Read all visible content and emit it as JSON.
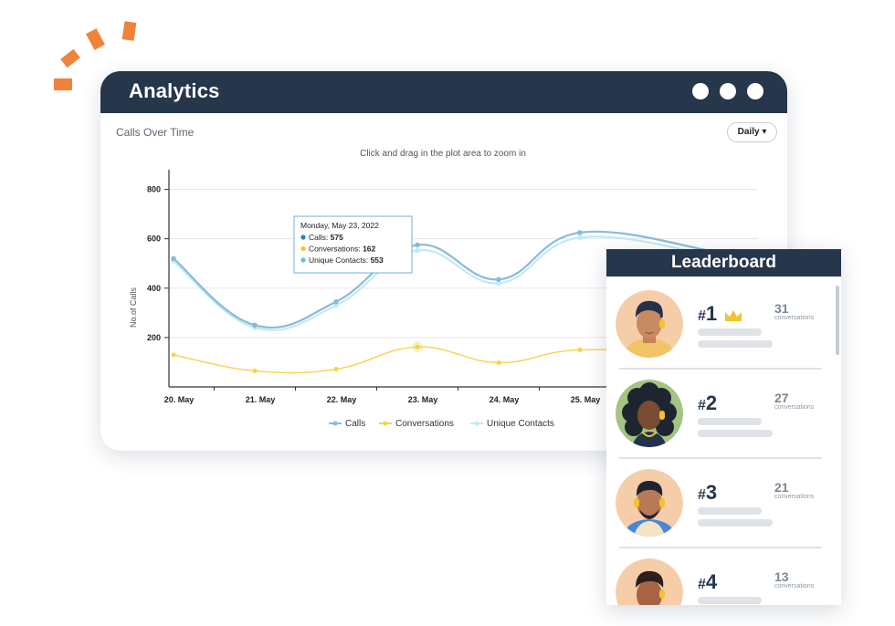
{
  "window": {
    "title": "Analytics",
    "chart_title": "Calls Over Time",
    "interval_select": "Daily ▾",
    "zoom_hint": "Click and drag in the plot area to zoom in"
  },
  "chart_data": {
    "type": "line",
    "title": "Calls Over Time",
    "subtitle": "Click and drag in the plot area to zoom in",
    "xlabel": "",
    "ylabel": "No.of Calls",
    "categories": [
      "20. May",
      "21. May",
      "22. May",
      "23. May",
      "24. May",
      "25. May"
    ],
    "yticks": [
      200,
      400,
      600,
      800
    ],
    "ylim": [
      0,
      850
    ],
    "series": [
      {
        "name": "Calls",
        "color": "#88bcd8",
        "values": [
          520,
          250,
          345,
          575,
          435,
          625
        ]
      },
      {
        "name": "Conversations",
        "color": "#f5d34e",
        "values": [
          130,
          65,
          72,
          162,
          98,
          150
        ]
      },
      {
        "name": "Unique Contacts",
        "color": "#c4e9f4",
        "values": [
          510,
          240,
          330,
          553,
          420,
          605
        ]
      }
    ],
    "tooltip": {
      "date": "Monday, May 23, 2022",
      "rows": [
        {
          "label": "Calls: ",
          "value": "575",
          "color": "#2f7fc1"
        },
        {
          "label": "Conversations: ",
          "value": "162",
          "color": "#f3c531"
        },
        {
          "label": "Unique Contacts: ",
          "value": "553",
          "color": "#5ec3de"
        }
      ]
    },
    "grid": true,
    "legend": "bottom-center"
  },
  "leaderboard": {
    "title": "Leaderboard",
    "entries": [
      {
        "rank": "1",
        "count": "31",
        "label": "conversations"
      },
      {
        "rank": "2",
        "count": "27",
        "label": "conversations"
      },
      {
        "rank": "3",
        "count": "21",
        "label": "conversations"
      },
      {
        "rank": "4",
        "count": "13",
        "label": "conversations"
      }
    ]
  },
  "colors": {
    "header": "#26364b",
    "accent_orange": "#f0833a",
    "calls": "#88bcd8",
    "conversations": "#f5d34e",
    "unique_contacts": "#c4e9f4",
    "crown": "#f1c232"
  }
}
